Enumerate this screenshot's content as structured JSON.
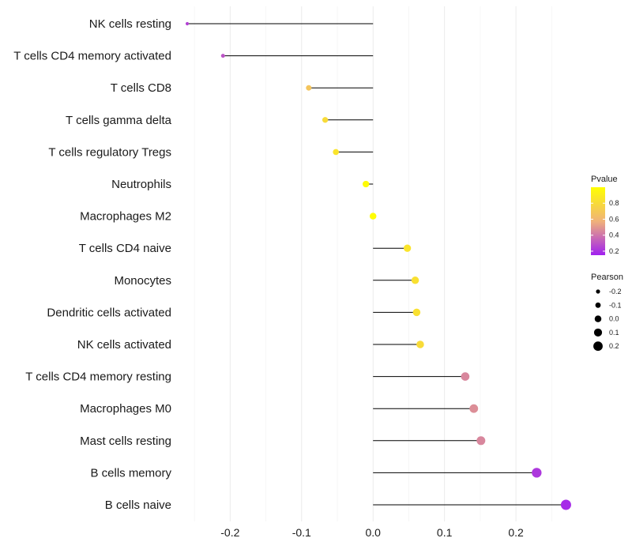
{
  "chart_data": {
    "type": "lollipop",
    "title": "",
    "xlabel": "",
    "ylabel": "",
    "xlim": [
      -0.27,
      0.285
    ],
    "x_ticks": [
      -0.2,
      -0.1,
      0.0,
      0.1,
      0.2
    ],
    "x_tick_labels": [
      "-0.2",
      "-0.1",
      "0.0",
      "0.1",
      "0.2"
    ],
    "grid": true,
    "categories": [
      "NK cells resting",
      "T cells CD4 memory activated",
      "T cells CD8",
      "T cells gamma delta",
      "T cells regulatory  Tregs ",
      "Neutrophils",
      "Macrophages M2",
      "T cells CD4 naive",
      "Monocytes",
      "Dendritic cells activated",
      "NK cells activated",
      "T cells CD4 memory resting",
      "Macrophages M0",
      "Mast cells resting",
      "B cells memory",
      "B cells naive"
    ],
    "values": [
      -0.26,
      -0.21,
      -0.09,
      -0.067,
      -0.052,
      -0.01,
      0.0,
      0.048,
      0.059,
      0.061,
      0.066,
      0.129,
      0.141,
      0.151,
      0.229,
      0.27
    ],
    "pvalues": [
      0.25,
      0.3,
      0.68,
      0.8,
      0.85,
      0.98,
      0.99,
      0.85,
      0.83,
      0.83,
      0.8,
      0.45,
      0.47,
      0.45,
      0.22,
      0.18
    ],
    "legend_pvalue": {
      "title": "Pvalue",
      "ticks": [
        0.8,
        0.6,
        0.4,
        0.2
      ],
      "labels": [
        "0.8",
        "0.6",
        "0.4",
        "0.2"
      ],
      "range": [
        0.15,
        1.0
      ],
      "colors": [
        "#a020f0",
        "#f0b27a",
        "#ffff00"
      ]
    },
    "legend_pearson": {
      "title": "Pearson",
      "values": [
        -0.2,
        -0.1,
        0.0,
        0.1,
        0.2
      ],
      "labels": [
        "-0.2",
        "-0.1",
        "0.0",
        "0.1",
        "0.2"
      ]
    },
    "legend_position": "right"
  }
}
